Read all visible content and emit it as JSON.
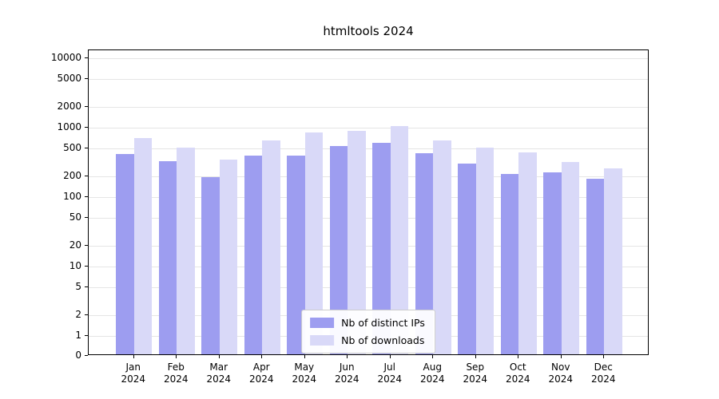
{
  "chart_data": {
    "type": "bar",
    "title": "htmltools 2024",
    "x_year": "2024",
    "categories": [
      "Jan",
      "Feb",
      "Mar",
      "Apr",
      "May",
      "Jun",
      "Jul",
      "Aug",
      "Sep",
      "Oct",
      "Nov",
      "Dec"
    ],
    "series": [
      {
        "name": "Nb of distinct IPs",
        "color": "#9d9df0",
        "values": [
          420,
          330,
          195,
          400,
          400,
          550,
          600,
          430,
          300,
          215,
          225,
          185
        ]
      },
      {
        "name": "Nb of downloads",
        "color": "#d9d9f8",
        "values": [
          700,
          520,
          350,
          650,
          850,
          900,
          1050,
          650,
          520,
          440,
          320,
          260
        ]
      }
    ],
    "yscale": "symlog",
    "yticks": [
      10000,
      5000,
      2000,
      1000,
      500,
      200,
      100,
      50,
      20,
      10,
      5,
      2,
      1,
      0
    ],
    "ylim": [
      0,
      13000
    ],
    "xlabel": "",
    "ylabel": "",
    "grid": "horizontal",
    "legend_position": "lower-center-inside"
  }
}
